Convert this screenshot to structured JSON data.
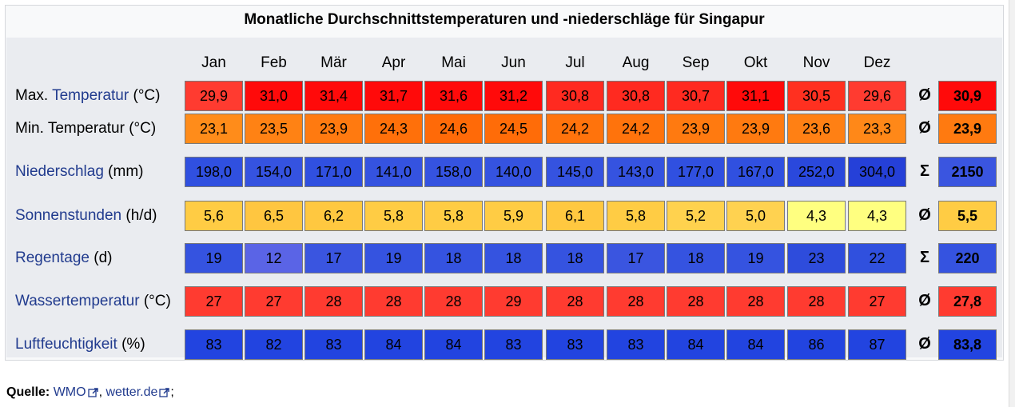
{
  "title": "Monatliche Durchschnittstemperaturen und -niederschläge für Singapur",
  "months": [
    "Jan",
    "Feb",
    "Mär",
    "Apr",
    "Mai",
    "Jun",
    "Jul",
    "Aug",
    "Sep",
    "Okt",
    "Nov",
    "Dez"
  ],
  "rows": [
    {
      "label_link": "",
      "label_pre": "Max. ",
      "label_linkpart": "Temperatur",
      "label_post": " (°C)",
      "values": [
        "29,9",
        "31,0",
        "31,4",
        "31,7",
        "31,6",
        "31,2",
        "30,8",
        "30,8",
        "30,7",
        "31,1",
        "30,5",
        "29,6"
      ],
      "colors": [
        "#ff3b30",
        "#ff0a0a",
        "#ff0a0a",
        "#ff0a0a",
        "#ff0a0a",
        "#ff0a0a",
        "#ff2a20",
        "#ff2a20",
        "#ff2a20",
        "#ff0a0a",
        "#ff3020",
        "#ff3b30"
      ],
      "summary_symbol": "Ø",
      "summary_value": "30,9",
      "summary_color": "#ff0a0a"
    },
    {
      "label_pre": "Min. Temperatur (°C)",
      "label_linkpart": "",
      "label_post": "",
      "values": [
        "23,1",
        "23,5",
        "23,9",
        "24,3",
        "24,6",
        "24,5",
        "24,2",
        "24,2",
        "23,9",
        "23,9",
        "23,6",
        "23,3"
      ],
      "colors": [
        "#ff8c1a",
        "#ff8214",
        "#ff7a10",
        "#ff700a",
        "#ff6a08",
        "#ff6c08",
        "#ff730c",
        "#ff730c",
        "#ff7a10",
        "#ff7a10",
        "#ff8014",
        "#ff8818"
      ],
      "summary_symbol": "Ø",
      "summary_value": "23,9",
      "summary_color": "#ff7a10"
    },
    {
      "label_pre": "",
      "label_linkpart": "Niederschlag",
      "label_post": " (mm)",
      "values": [
        "198,0",
        "154,0",
        "171,0",
        "141,0",
        "158,0",
        "140,0",
        "145,0",
        "143,0",
        "177,0",
        "167,0",
        "252,0",
        "304,0"
      ],
      "colors": [
        "#3050e0",
        "#3553e0",
        "#3050e0",
        "#3553e0",
        "#3553e0",
        "#3553e0",
        "#3553e0",
        "#3553e0",
        "#3050e0",
        "#3050e0",
        "#2a48dc",
        "#2540d8"
      ],
      "summary_symbol": "Σ",
      "summary_value": "2150",
      "summary_color": "#3a55e0"
    },
    {
      "label_pre": "",
      "label_linkpart": "Sonnenstunden",
      "label_post": " (h/d)",
      "values": [
        "5,6",
        "6,5",
        "6,2",
        "5,8",
        "5,8",
        "5,9",
        "6,1",
        "5,8",
        "5,2",
        "5,0",
        "4,3",
        "4,3"
      ],
      "colors": [
        "#ffcc44",
        "#ffc640",
        "#ffc840",
        "#ffcc44",
        "#ffcc44",
        "#ffcc44",
        "#ffc840",
        "#ffcc44",
        "#ffd24e",
        "#ffd250",
        "#ffff80",
        "#ffff80"
      ],
      "summary_symbol": "Ø",
      "summary_value": "5,5",
      "summary_color": "#ffcc44"
    },
    {
      "label_pre": "",
      "label_linkpart": "Regentage",
      "label_post": " (d)",
      "values": [
        "19",
        "12",
        "17",
        "19",
        "18",
        "18",
        "18",
        "17",
        "18",
        "19",
        "23",
        "22"
      ],
      "colors": [
        "#3553e0",
        "#5a64e6",
        "#3a55e0",
        "#3553e0",
        "#3553e0",
        "#3553e0",
        "#3553e0",
        "#3a55e0",
        "#3553e0",
        "#3553e0",
        "#2e4cdc",
        "#3050de"
      ],
      "summary_symbol": "Σ",
      "summary_value": "220",
      "summary_color": "#3553e0"
    },
    {
      "label_pre": "",
      "label_linkpart": "Wassertemperatur",
      "label_post": " (°C)",
      "values": [
        "27",
        "27",
        "28",
        "28",
        "28",
        "29",
        "28",
        "28",
        "28",
        "28",
        "28",
        "27"
      ],
      "colors": [
        "#ff3b30",
        "#ff3b30",
        "#ff3b30",
        "#ff3b30",
        "#ff3b30",
        "#ff3b30",
        "#ff3b30",
        "#ff3b30",
        "#ff3b30",
        "#ff3b30",
        "#ff3b30",
        "#ff3b30"
      ],
      "summary_symbol": "Ø",
      "summary_value": "27,8",
      "summary_color": "#ff3b30"
    },
    {
      "label_pre": "",
      "label_linkpart": "Luftfeuchtigkeit",
      "label_post": " (%)",
      "values": [
        "83",
        "82",
        "83",
        "84",
        "84",
        "83",
        "83",
        "83",
        "84",
        "84",
        "86",
        "87"
      ],
      "colors": [
        "#2244e0",
        "#2244e0",
        "#2244e0",
        "#2244e0",
        "#2244e0",
        "#2244e0",
        "#2244e0",
        "#2244e0",
        "#2244e0",
        "#2244e0",
        "#2244e0",
        "#2244e0"
      ],
      "summary_symbol": "Ø",
      "summary_value": "83,8",
      "summary_color": "#2244e0"
    }
  ],
  "source": {
    "label": "Quelle:",
    "links": [
      "WMO",
      "wetter.de"
    ],
    "separator": ", ",
    "trailer": ";"
  }
}
